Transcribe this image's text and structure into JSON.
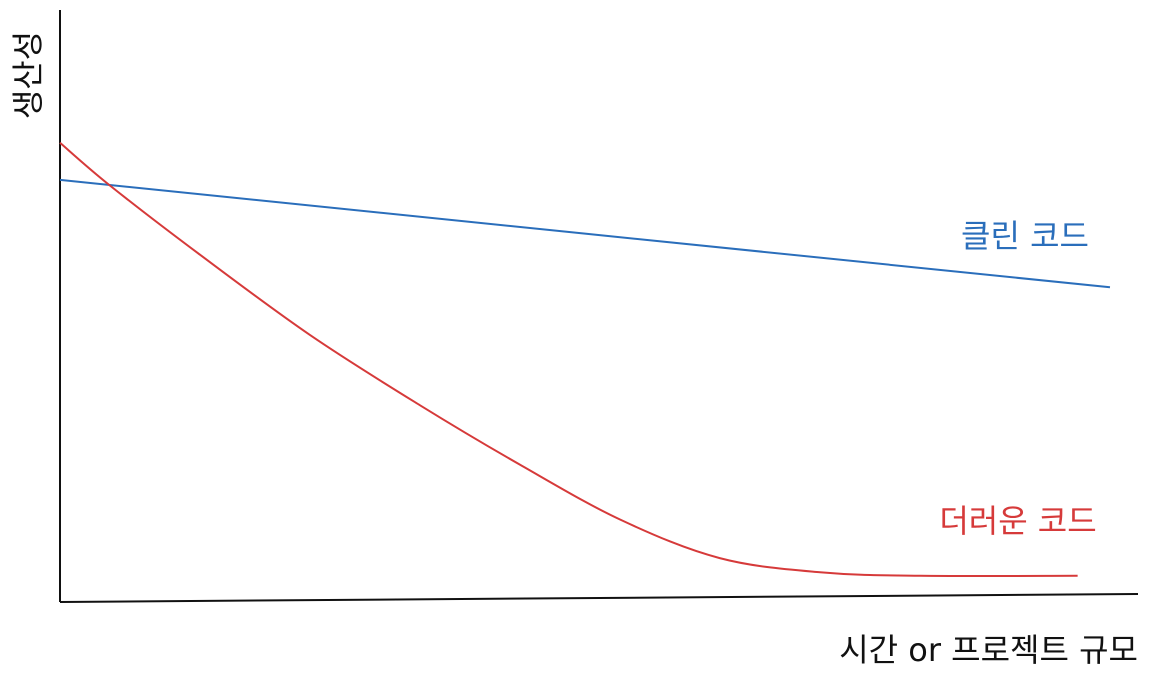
{
  "chart_data": {
    "type": "line",
    "x_label": "시간 or 프로젝트 규모",
    "y_label": "생산성",
    "xlim": [
      0,
      100
    ],
    "ylim": [
      0,
      100
    ],
    "series": [
      {
        "name": "클린 코드",
        "color": "#2a6ebb",
        "x": [
          0,
          97.4
        ],
        "values": [
          71.2,
          53
        ]
      },
      {
        "name": "더러운 코드",
        "color": "#d63a3a",
        "x": [
          0,
          4.6,
          13,
          23.2,
          33.4,
          42.7,
          52,
          61.2,
          70.5,
          79.8,
          94.4
        ],
        "values": [
          77.5,
          70.3,
          58.5,
          44.9,
          33,
          22.9,
          13.6,
          7.1,
          4.7,
          4.1,
          4.1
        ]
      }
    ]
  }
}
